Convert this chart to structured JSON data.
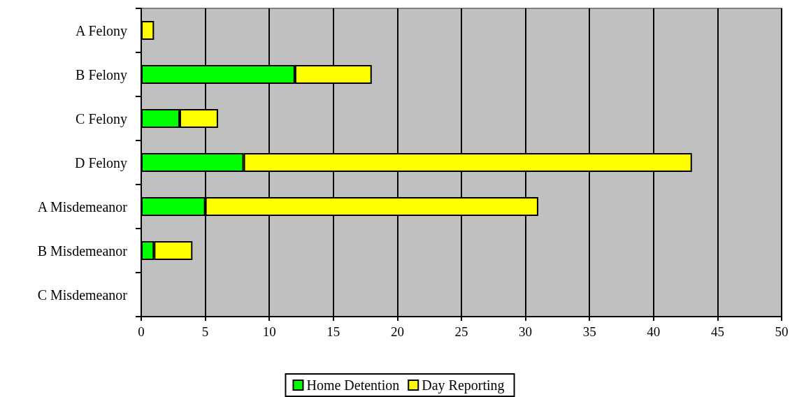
{
  "chart_data": {
    "type": "bar",
    "orientation": "horizontal",
    "stacked": true,
    "categories": [
      "A Felony",
      "B Felony",
      "C Felony",
      "D Felony",
      "A Misdemeanor",
      "B Misdemeanor",
      "C Misdemeanor"
    ],
    "series": [
      {
        "name": "Home Detention",
        "color": "#00ff00",
        "values": [
          0,
          12,
          3,
          8,
          5,
          1,
          0
        ]
      },
      {
        "name": "Day Reporting",
        "color": "#ffff00",
        "values": [
          1,
          6,
          3,
          35,
          26,
          3,
          0
        ]
      }
    ],
    "xlim": [
      0,
      50
    ],
    "xticks": [
      0,
      5,
      10,
      15,
      20,
      25,
      30,
      35,
      40,
      45,
      50
    ],
    "grid": "x",
    "legend": "bottom"
  }
}
